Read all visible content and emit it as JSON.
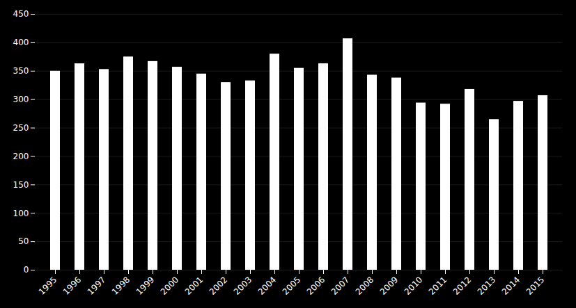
{
  "chart_data": {
    "type": "bar",
    "categories": [
      "1995",
      "1996",
      "1997",
      "1998",
      "1999",
      "2000",
      "2001",
      "2002",
      "2003",
      "2004",
      "2005",
      "2006",
      "2007",
      "2008",
      "2009",
      "2010",
      "2011",
      "2012",
      "2013",
      "2014",
      "2015"
    ],
    "values": [
      350,
      363,
      353,
      375,
      367,
      357,
      345,
      330,
      333,
      380,
      355,
      363,
      407,
      343,
      338,
      294,
      292,
      318,
      265,
      297,
      307
    ],
    "color": "#ffffff",
    "ylim": [
      0,
      450
    ],
    "yticks": [
      0,
      50,
      100,
      150,
      200,
      250,
      300,
      350,
      400,
      450
    ],
    "grid": true
  }
}
